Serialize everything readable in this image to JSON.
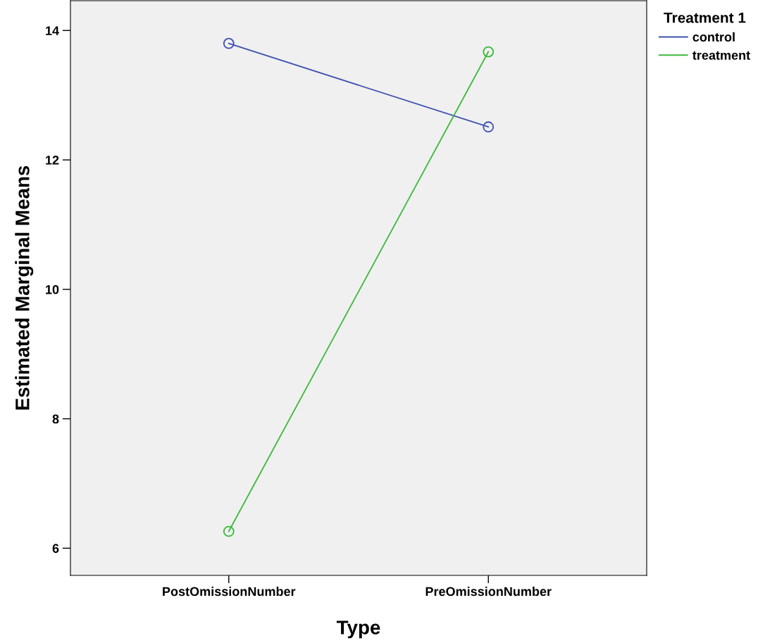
{
  "chart_data": {
    "type": "line",
    "xlabel": "Type",
    "ylabel": "Estimated Marginal Means",
    "legend_title": "Treatment 1",
    "categories": [
      "PostOmissionNumber",
      "PreOmissionNumber"
    ],
    "series": [
      {
        "name": "control",
        "color": "#3f51b0",
        "values": [
          13.8,
          12.51
        ]
      },
      {
        "name": "treatment",
        "color": "#3cb93c",
        "values": [
          6.26,
          13.67
        ]
      }
    ],
    "ylim": [
      5.58,
      14.46
    ],
    "yticks": [
      6,
      8,
      10,
      12,
      14
    ],
    "marker": "circle",
    "line_style": "solid",
    "grid": false,
    "legend": "top right"
  }
}
